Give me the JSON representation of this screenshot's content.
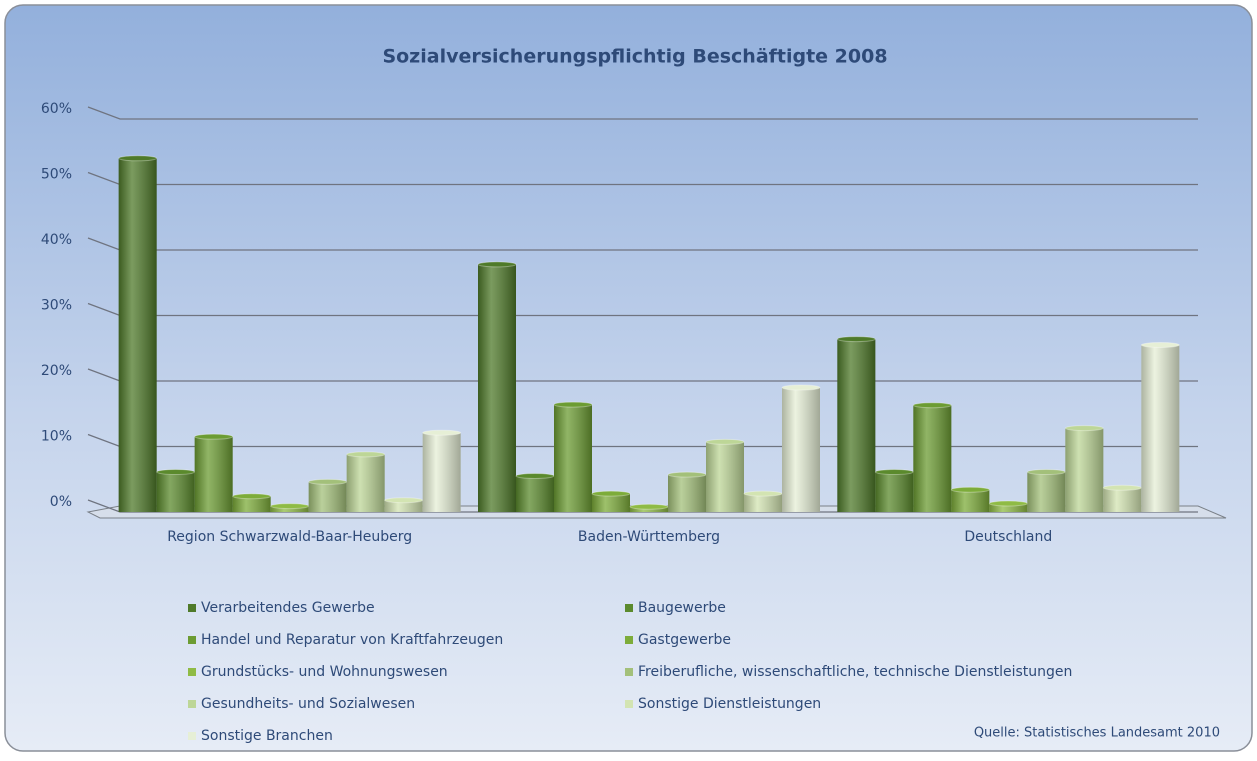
{
  "chart_data": {
    "type": "bar",
    "title": "Sozialversicherungspflichtig Beschäftigte   2008",
    "source": "Quelle: Statistisches Landesamt 2010",
    "categories": [
      "Region Schwarzwald-Baar-Heuberg",
      "Baden-Württemberg",
      "Deutschland"
    ],
    "series": [
      {
        "name": "Verarbeitendes Gewerbe",
        "color": "#4f7a2a",
        "values": [
          54,
          37.8,
          26.4
        ]
      },
      {
        "name": "Baugewerbe",
        "color": "#5b8a2d",
        "values": [
          6.1,
          5.5,
          6.1
        ]
      },
      {
        "name": "Handel und Reparatur von Kraftfahrzeugen",
        "color": "#6c9c33",
        "values": [
          11.5,
          16.4,
          16.3
        ]
      },
      {
        "name": "Gastgewerbe",
        "color": "#7dac3a",
        "values": [
          2.4,
          2.8,
          3.4
        ]
      },
      {
        "name": "Grundstücks- und Wohnungswesen",
        "color": "#8fbb45",
        "values": [
          0.9,
          0.8,
          1.3
        ]
      },
      {
        "name": "Freiberufliche, wissenschaftliche, technische Dienstleistungen",
        "color": "#a3c07a",
        "values": [
          4.6,
          5.7,
          6.1
        ]
      },
      {
        "name": "Gesundheits- und Sozialwesen",
        "color": "#bdd697",
        "values": [
          8.8,
          10.7,
          12.8
        ]
      },
      {
        "name": "Sonstige Dienstleistungen",
        "color": "#d3e4b2",
        "values": [
          1.8,
          2.8,
          3.7
        ]
      },
      {
        "name": "Sonstige Branchen",
        "color": "#e6efd6",
        "values": [
          12.1,
          19,
          25.5
        ]
      }
    ],
    "ylim": [
      0,
      60
    ],
    "yticks": [
      {
        "value": 0,
        "label": "0%"
      },
      {
        "value": 10,
        "label": "10%"
      },
      {
        "value": 20,
        "label": "20%"
      },
      {
        "value": 30,
        "label": "30%"
      },
      {
        "value": 40,
        "label": "40%"
      },
      {
        "value": 50,
        "label": "50%"
      },
      {
        "value": 60,
        "label": "60%"
      }
    ],
    "grid": true
  }
}
